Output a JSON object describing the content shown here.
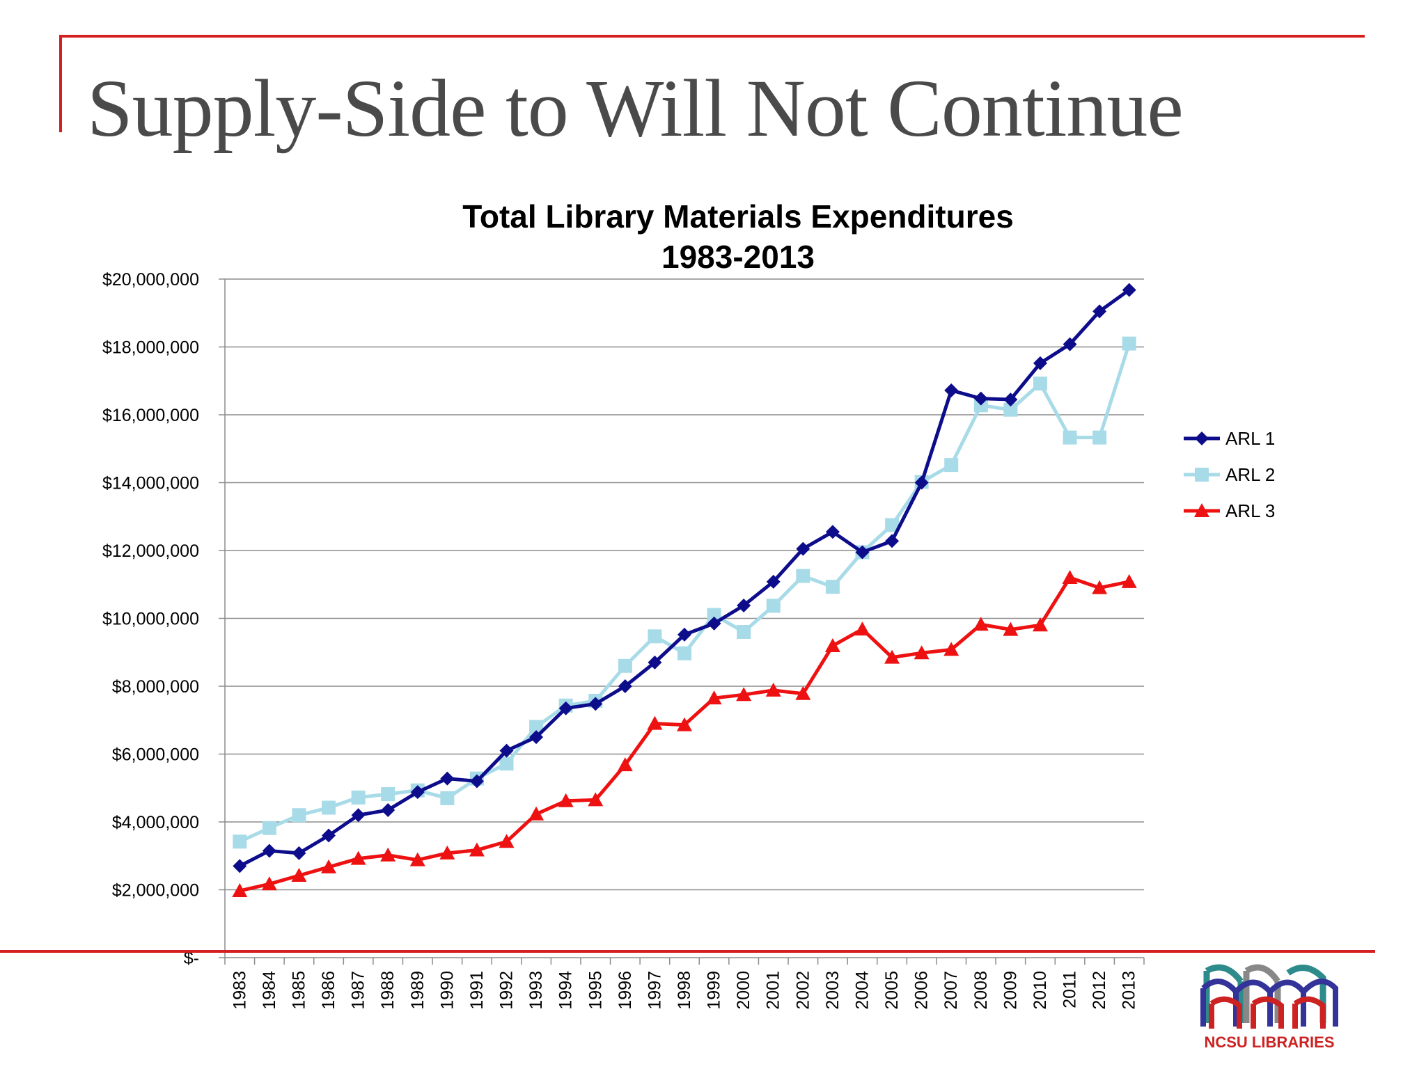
{
  "slide": {
    "title": "Supply-Side to Will Not Continue",
    "accent_color": "#d42020",
    "logo": {
      "text": "NCSU LIBRARIES"
    }
  },
  "chart_data": {
    "type": "line",
    "title": "Total Library Materials Expenditures",
    "subtitle": "1983-2013",
    "xlabel": "",
    "ylabel": "",
    "categories": [
      "1983",
      "1984",
      "1985",
      "1986",
      "1987",
      "1988",
      "1989",
      "1990",
      "1991",
      "1992",
      "1993",
      "1994",
      "1995",
      "1996",
      "1997",
      "1998",
      "1999",
      "2000",
      "2001",
      "2002",
      "2003",
      "2004",
      "2005",
      "2006",
      "2007",
      "2008",
      "2009",
      "2010",
      "2011",
      "2012",
      "2013"
    ],
    "ylim": [
      0,
      20000000
    ],
    "yticks": [
      0,
      2000000,
      4000000,
      6000000,
      8000000,
      10000000,
      12000000,
      14000000,
      16000000,
      18000000,
      20000000
    ],
    "ytick_labels": [
      "$-",
      "$2,000,000",
      "$4,000,000",
      "$6,000,000",
      "$8,000,000",
      "$10,000,000",
      "$12,000,000",
      "$14,000,000",
      "$16,000,000",
      "$18,000,000",
      "$20,000,000"
    ],
    "grid": true,
    "legend_position": "right",
    "series": [
      {
        "name": "ARL 1",
        "color": "#0d0d8c",
        "marker": "diamond",
        "values": [
          2700000,
          3150000,
          3080000,
          3600000,
          4200000,
          4350000,
          4880000,
          5280000,
          5200000,
          6100000,
          6500000,
          7350000,
          7480000,
          8000000,
          8700000,
          9520000,
          9850000,
          10380000,
          11080000,
          12050000,
          12550000,
          11950000,
          12280000,
          14000000,
          16720000,
          16480000,
          16450000,
          17520000,
          18080000,
          19050000,
          19680000
        ]
      },
      {
        "name": "ARL 2",
        "color": "#a8dbe8",
        "marker": "square",
        "values": [
          3420000,
          3820000,
          4200000,
          4420000,
          4720000,
          4820000,
          4930000,
          4700000,
          5280000,
          5720000,
          6800000,
          7430000,
          7570000,
          8600000,
          9470000,
          8970000,
          10100000,
          9600000,
          10370000,
          11250000,
          10930000,
          11950000,
          12750000,
          14020000,
          14520000,
          16280000,
          16150000,
          16920000,
          15330000,
          15330000,
          18100000
        ]
      },
      {
        "name": "ARL 3",
        "color": "#ee1111",
        "marker": "triangle",
        "values": [
          1970000,
          2170000,
          2420000,
          2670000,
          2920000,
          3020000,
          2880000,
          3080000,
          3170000,
          3420000,
          4230000,
          4620000,
          4650000,
          5680000,
          6900000,
          6860000,
          7650000,
          7750000,
          7880000,
          7780000,
          9190000,
          9680000,
          8850000,
          8980000,
          9080000,
          9820000,
          9670000,
          9800000,
          11200000,
          10900000,
          11080000
        ]
      }
    ]
  }
}
